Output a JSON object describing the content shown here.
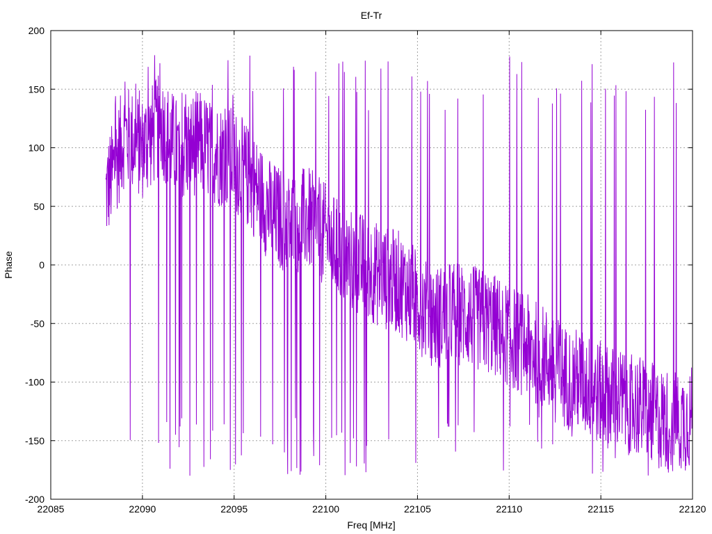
{
  "chart_data": {
    "type": "line",
    "title": "Ef-Tr",
    "xlabel": "Freq [MHz]",
    "ylabel": "Phase",
    "xlim": [
      22085,
      22120
    ],
    "ylim": [
      -200,
      200
    ],
    "xticks": [
      22085,
      22090,
      22095,
      22100,
      22105,
      22110,
      22115,
      22120
    ],
    "yticks": [
      -200,
      -150,
      -100,
      -50,
      0,
      50,
      100,
      150,
      200
    ],
    "grid": true,
    "line_color": "#9400d3",
    "series": [
      {
        "x_start": 22088.0,
        "x_end": 22120.0,
        "envelope_note_free": true,
        "trend_points": [
          [
            22088.0,
            60
          ],
          [
            22089.0,
            110
          ],
          [
            22090.0,
            100
          ],
          [
            22091.0,
            120
          ],
          [
            22092.0,
            95
          ],
          [
            22093.0,
            105
          ],
          [
            22094.0,
            95
          ],
          [
            22095.0,
            90
          ],
          [
            22096.0,
            70
          ],
          [
            22097.0,
            45
          ],
          [
            22098.0,
            35
          ],
          [
            22099.0,
            40
          ],
          [
            22100.0,
            25
          ],
          [
            22101.0,
            5
          ],
          [
            22102.0,
            0
          ],
          [
            22103.0,
            -10
          ],
          [
            22104.0,
            -15
          ],
          [
            22105.0,
            -30
          ],
          [
            22106.0,
            -45
          ],
          [
            22107.0,
            -40
          ],
          [
            22108.0,
            -45
          ],
          [
            22109.0,
            -50
          ],
          [
            22110.0,
            -60
          ],
          [
            22111.0,
            -70
          ],
          [
            22112.0,
            -80
          ],
          [
            22113.0,
            -95
          ],
          [
            22114.0,
            -100
          ],
          [
            22115.0,
            -110
          ],
          [
            22116.0,
            -115
          ],
          [
            22117.0,
            -120
          ],
          [
            22118.0,
            -130
          ],
          [
            22119.0,
            -135
          ],
          [
            22120.0,
            -130
          ]
        ]
      }
    ]
  }
}
